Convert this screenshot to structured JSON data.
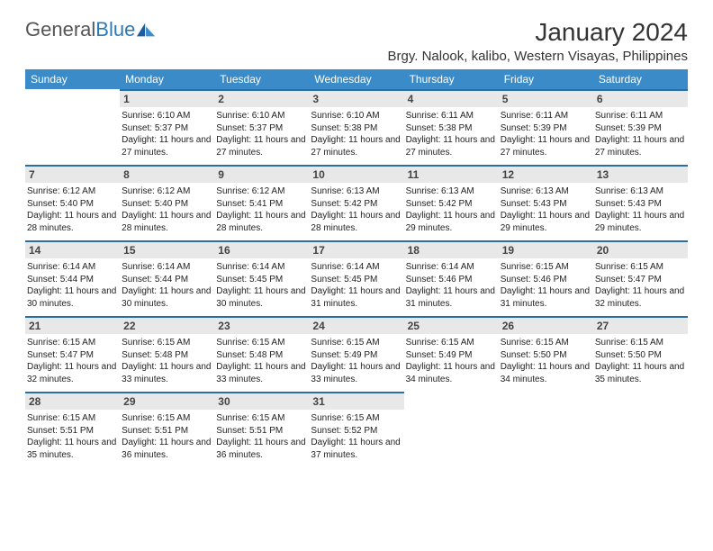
{
  "brand": {
    "part1": "General",
    "part2": "Blue"
  },
  "title": "January 2024",
  "location": "Brgy. Nalook, kalibo, Western Visayas, Philippines",
  "colors": {
    "header_bg": "#3b8bc9",
    "header_text": "#ffffff",
    "daybar_bg": "#e8e8e8",
    "daybar_border": "#2a6ea8",
    "body_text": "#222222"
  },
  "fonts": {
    "title_size": 28,
    "location_size": 15,
    "header_size": 12,
    "daynum_size": 12,
    "info_size": 10
  },
  "weekdays": [
    "Sunday",
    "Monday",
    "Tuesday",
    "Wednesday",
    "Thursday",
    "Friday",
    "Saturday"
  ],
  "first_weekday_index": 1,
  "days": [
    {
      "n": 1,
      "sunrise": "6:10 AM",
      "sunset": "5:37 PM",
      "daylight": "11 hours and 27 minutes."
    },
    {
      "n": 2,
      "sunrise": "6:10 AM",
      "sunset": "5:37 PM",
      "daylight": "11 hours and 27 minutes."
    },
    {
      "n": 3,
      "sunrise": "6:10 AM",
      "sunset": "5:38 PM",
      "daylight": "11 hours and 27 minutes."
    },
    {
      "n": 4,
      "sunrise": "6:11 AM",
      "sunset": "5:38 PM",
      "daylight": "11 hours and 27 minutes."
    },
    {
      "n": 5,
      "sunrise": "6:11 AM",
      "sunset": "5:39 PM",
      "daylight": "11 hours and 27 minutes."
    },
    {
      "n": 6,
      "sunrise": "6:11 AM",
      "sunset": "5:39 PM",
      "daylight": "11 hours and 27 minutes."
    },
    {
      "n": 7,
      "sunrise": "6:12 AM",
      "sunset": "5:40 PM",
      "daylight": "11 hours and 28 minutes."
    },
    {
      "n": 8,
      "sunrise": "6:12 AM",
      "sunset": "5:40 PM",
      "daylight": "11 hours and 28 minutes."
    },
    {
      "n": 9,
      "sunrise": "6:12 AM",
      "sunset": "5:41 PM",
      "daylight": "11 hours and 28 minutes."
    },
    {
      "n": 10,
      "sunrise": "6:13 AM",
      "sunset": "5:42 PM",
      "daylight": "11 hours and 28 minutes."
    },
    {
      "n": 11,
      "sunrise": "6:13 AM",
      "sunset": "5:42 PM",
      "daylight": "11 hours and 29 minutes."
    },
    {
      "n": 12,
      "sunrise": "6:13 AM",
      "sunset": "5:43 PM",
      "daylight": "11 hours and 29 minutes."
    },
    {
      "n": 13,
      "sunrise": "6:13 AM",
      "sunset": "5:43 PM",
      "daylight": "11 hours and 29 minutes."
    },
    {
      "n": 14,
      "sunrise": "6:14 AM",
      "sunset": "5:44 PM",
      "daylight": "11 hours and 30 minutes."
    },
    {
      "n": 15,
      "sunrise": "6:14 AM",
      "sunset": "5:44 PM",
      "daylight": "11 hours and 30 minutes."
    },
    {
      "n": 16,
      "sunrise": "6:14 AM",
      "sunset": "5:45 PM",
      "daylight": "11 hours and 30 minutes."
    },
    {
      "n": 17,
      "sunrise": "6:14 AM",
      "sunset": "5:45 PM",
      "daylight": "11 hours and 31 minutes."
    },
    {
      "n": 18,
      "sunrise": "6:14 AM",
      "sunset": "5:46 PM",
      "daylight": "11 hours and 31 minutes."
    },
    {
      "n": 19,
      "sunrise": "6:15 AM",
      "sunset": "5:46 PM",
      "daylight": "11 hours and 31 minutes."
    },
    {
      "n": 20,
      "sunrise": "6:15 AM",
      "sunset": "5:47 PM",
      "daylight": "11 hours and 32 minutes."
    },
    {
      "n": 21,
      "sunrise": "6:15 AM",
      "sunset": "5:47 PM",
      "daylight": "11 hours and 32 minutes."
    },
    {
      "n": 22,
      "sunrise": "6:15 AM",
      "sunset": "5:48 PM",
      "daylight": "11 hours and 33 minutes."
    },
    {
      "n": 23,
      "sunrise": "6:15 AM",
      "sunset": "5:48 PM",
      "daylight": "11 hours and 33 minutes."
    },
    {
      "n": 24,
      "sunrise": "6:15 AM",
      "sunset": "5:49 PM",
      "daylight": "11 hours and 33 minutes."
    },
    {
      "n": 25,
      "sunrise": "6:15 AM",
      "sunset": "5:49 PM",
      "daylight": "11 hours and 34 minutes."
    },
    {
      "n": 26,
      "sunrise": "6:15 AM",
      "sunset": "5:50 PM",
      "daylight": "11 hours and 34 minutes."
    },
    {
      "n": 27,
      "sunrise": "6:15 AM",
      "sunset": "5:50 PM",
      "daylight": "11 hours and 35 minutes."
    },
    {
      "n": 28,
      "sunrise": "6:15 AM",
      "sunset": "5:51 PM",
      "daylight": "11 hours and 35 minutes."
    },
    {
      "n": 29,
      "sunrise": "6:15 AM",
      "sunset": "5:51 PM",
      "daylight": "11 hours and 36 minutes."
    },
    {
      "n": 30,
      "sunrise": "6:15 AM",
      "sunset": "5:51 PM",
      "daylight": "11 hours and 36 minutes."
    },
    {
      "n": 31,
      "sunrise": "6:15 AM",
      "sunset": "5:52 PM",
      "daylight": "11 hours and 37 minutes."
    }
  ],
  "labels": {
    "sunrise": "Sunrise:",
    "sunset": "Sunset:",
    "daylight": "Daylight:"
  }
}
